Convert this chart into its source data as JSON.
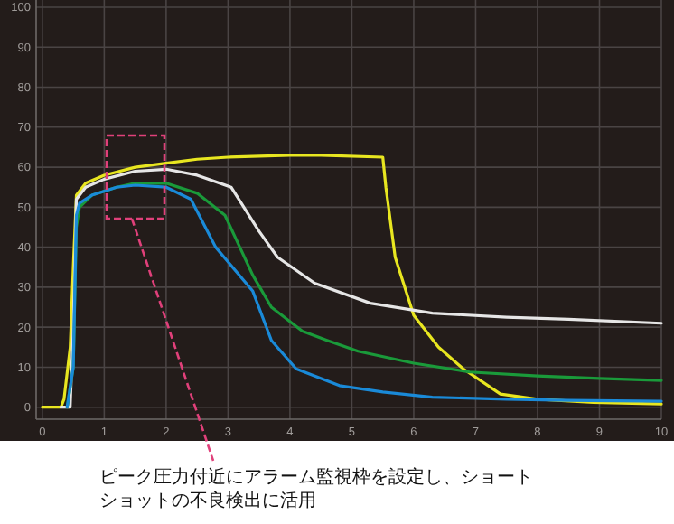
{
  "chart_data": {
    "type": "line",
    "xlim": [
      -0.1,
      10
    ],
    "ylim": [
      -3,
      100
    ],
    "xticks": [
      0,
      1,
      2,
      3,
      4,
      5,
      6,
      7,
      8,
      9,
      10
    ],
    "yticks": [
      0,
      10,
      20,
      30,
      40,
      50,
      60,
      70,
      80,
      90,
      100
    ],
    "grid": true,
    "annotations": [
      "ピーク圧力付近にアラーム監視枠を設定し、ショートショットの不良検出に活用"
    ],
    "series": [
      {
        "color": "#e8e620",
        "x": [
          0,
          0.3,
          0.35,
          0.45,
          0.5,
          0.55,
          0.7,
          1.0,
          1.5,
          2.0,
          2.5,
          3.0,
          4.0,
          4.5,
          5.5,
          5.55,
          5.7,
          6.0,
          6.4,
          6.8,
          7.4,
          8.0,
          8.9,
          10
        ],
        "values": [
          0,
          0,
          2,
          15,
          35,
          53,
          56,
          58,
          60,
          61,
          62,
          62.5,
          63,
          63,
          62.5,
          55,
          37.5,
          23,
          15,
          9.6,
          3.3,
          2,
          1.2,
          0.8
        ]
      },
      {
        "color": "#e6e6e6",
        "x": [
          0.3,
          0.45,
          0.5,
          0.55,
          0.7,
          1.0,
          1.5,
          2.0,
          2.5,
          3.05,
          3.5,
          3.8,
          4.4,
          5.3,
          6.3,
          7.5,
          8.5,
          10
        ],
        "values": [
          0,
          0,
          20,
          52,
          55,
          57,
          59,
          59.5,
          58,
          55,
          44,
          37.5,
          31,
          26,
          23.5,
          22.5,
          22,
          21
        ]
      },
      {
        "color": "#1a9a3a",
        "x": [
          0.4,
          0.5,
          0.55,
          0.6,
          0.8,
          1.2,
          1.5,
          2.0,
          2.5,
          2.95,
          3.4,
          3.7,
          4.2,
          4.6,
          5.1,
          6.0,
          6.9,
          8.0,
          9.0,
          10
        ],
        "values": [
          0,
          10,
          45,
          50,
          53,
          55,
          56,
          56,
          53.5,
          48,
          33,
          25,
          19,
          16.7,
          14,
          11,
          8.8,
          7.8,
          7.2,
          6.7
        ]
      },
      {
        "color": "#1a8ad8",
        "x": [
          0.4,
          0.5,
          0.55,
          0.6,
          0.8,
          1.2,
          1.5,
          2.0,
          2.4,
          2.8,
          3.4,
          3.7,
          4.1,
          4.8,
          5.5,
          6.3,
          7.5,
          8.5,
          10
        ],
        "values": [
          0,
          10,
          48,
          51,
          53,
          55,
          55.5,
          55,
          52,
          40,
          29,
          16.7,
          9.6,
          5.4,
          3.8,
          2.5,
          2,
          1.7,
          1.5
        ]
      }
    ]
  }
}
